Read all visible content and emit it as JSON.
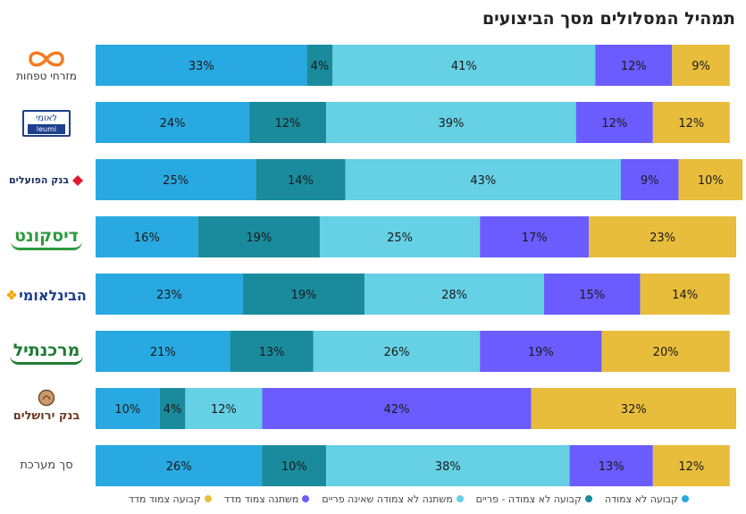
{
  "chart_data": {
    "type": "bar",
    "orientation": "horizontal",
    "stacked": true,
    "percent": true,
    "title": "תמהיל המסלולים מסך הביצועים",
    "categories": [
      "מזרחי טפחות",
      "לאומי leumi",
      "בנק הפועלים",
      "דיסקונט",
      "הבינלאומי",
      "מרכנתיל",
      "בנק ירושלים",
      "סך מערכת"
    ],
    "series": [
      {
        "name": "קבועה לא צמודה",
        "color": "#29a9e1",
        "values": [
          33,
          24,
          25,
          16,
          23,
          21,
          10,
          26
        ]
      },
      {
        "name": "קבועה לא צמודה - פריים",
        "color": "#1a8b9c",
        "values": [
          4,
          12,
          14,
          19,
          19,
          13,
          4,
          10
        ]
      },
      {
        "name": "משתנה לא צמודה שאינה פריים",
        "color": "#66d0e4",
        "values": [
          41,
          39,
          43,
          25,
          28,
          26,
          12,
          38
        ]
      },
      {
        "name": "משתנה צמוד מדד",
        "color": "#6a5cff",
        "values": [
          12,
          12,
          9,
          17,
          15,
          19,
          42,
          13
        ]
      },
      {
        "name": "קבועה צמוד מדד",
        "color": "#e8bd3c",
        "values": [
          9,
          12,
          10,
          23,
          14,
          20,
          32,
          12
        ]
      }
    ],
    "xlim": [
      0,
      100
    ],
    "grid": false,
    "legend_position": "bottom"
  },
  "logos": [
    {
      "text": "מזרחי טפחות",
      "icon": "infinity-icon"
    },
    {
      "text": "לאומי",
      "sub": "leumi"
    },
    {
      "text": "בנק הפועלים",
      "icon": "diamond-icon"
    },
    {
      "text": "דיסקונט"
    },
    {
      "text": "הבינלאומי",
      "icon": "flower-icon"
    },
    {
      "text": "מרכנתיל"
    },
    {
      "text": "בנק ירושלים",
      "icon": "coin-icon"
    },
    {
      "text": "סך מערכת"
    }
  ]
}
